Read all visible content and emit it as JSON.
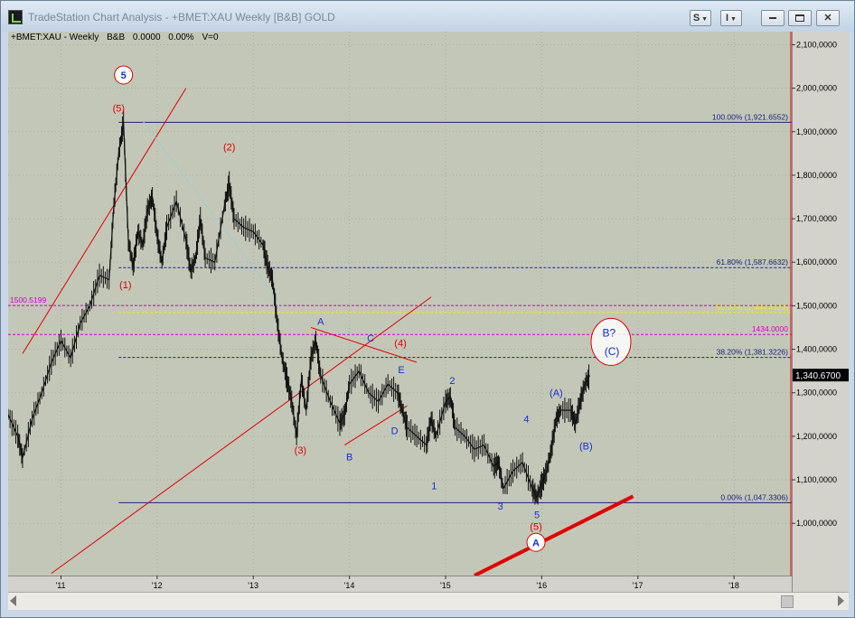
{
  "window": {
    "title": "TradeStation Chart Analysis - +BMET:XAU Weekly [B&B] GOLD",
    "btn_s": "S",
    "btn_i": "I"
  },
  "info": {
    "symbol": "+BMET:XAU - Weekly",
    "tag": "B&B",
    "value": "0.0000",
    "change": "0.00%",
    "volume": "V=0"
  },
  "colors": {
    "plot_bg": "#c3c7b8",
    "price": "#111111",
    "fib": "#1a237e",
    "fib_mid": "#2b3fc4",
    "magenta": "#d100d1",
    "yellow": "#f3f300",
    "red": "#e00000",
    "blue_label": "#1530d0"
  },
  "chart_data": {
    "type": "line",
    "title": "",
    "xlabel": "",
    "ylabel": "",
    "x_ticks": [
      "'11",
      "'12",
      "'13",
      "'14",
      "'15",
      "'16",
      "'17",
      "'18"
    ],
    "y_ticks": [
      "1,000,0000",
      "1,100,0000",
      "1,200,0000",
      "1,300,0000",
      "1,400,0000",
      "1,500,0000",
      "1,600,0000",
      "1,700,0000",
      "1,800,0000",
      "1,900,0000",
      "2,000,0000",
      "2,100,0000"
    ],
    "y_tick_values": [
      1000,
      1100,
      1200,
      1300,
      1400,
      1500,
      1600,
      1700,
      1800,
      1900,
      2000,
      2100
    ],
    "ylim": [
      880,
      2130
    ],
    "xlim": [
      2010.45,
      2018.6
    ],
    "last_price": "1,340.6700",
    "last_value": 1340.67,
    "series": [
      {
        "x": [
          2010.45,
          2010.55,
          2010.6,
          2010.7,
          2010.8,
          2010.9,
          2011.0,
          2011.1,
          2011.2,
          2011.3,
          2011.4,
          2011.5,
          2011.55,
          2011.6,
          2011.65,
          2011.7,
          2011.75,
          2011.8,
          2011.85,
          2011.9,
          2011.95,
          2012.0,
          2012.05,
          2012.1,
          2012.2,
          2012.3,
          2012.35,
          2012.4,
          2012.45,
          2012.5,
          2012.6,
          2012.7,
          2012.75,
          2012.8,
          2012.9,
          2013.0,
          2013.1,
          2013.15,
          2013.2,
          2013.25,
          2013.3,
          2013.35,
          2013.4,
          2013.45,
          2013.5,
          2013.55,
          2013.6,
          2013.65,
          2013.7,
          2013.8,
          2013.9,
          2013.95,
          2014.0,
          2014.1,
          2014.2,
          2014.3,
          2014.4,
          2014.5,
          2014.55,
          2014.6,
          2014.7,
          2014.8,
          2014.85,
          2014.9,
          2015.0,
          2015.05,
          2015.1,
          2015.2,
          2015.3,
          2015.4,
          2015.5,
          2015.55,
          2015.6,
          2015.7,
          2015.8,
          2015.9,
          2015.95,
          2016.0,
          2016.05,
          2016.1,
          2016.15,
          2016.2,
          2016.3,
          2016.35,
          2016.4,
          2016.45,
          2016.5
        ],
        "y": [
          1250,
          1200,
          1150,
          1240,
          1300,
          1370,
          1420,
          1380,
          1460,
          1500,
          1570,
          1560,
          1730,
          1850,
          1920,
          1650,
          1590,
          1670,
          1640,
          1720,
          1750,
          1660,
          1600,
          1680,
          1740,
          1650,
          1580,
          1610,
          1700,
          1610,
          1600,
          1730,
          1780,
          1700,
          1680,
          1670,
          1640,
          1590,
          1560,
          1460,
          1380,
          1330,
          1280,
          1200,
          1330,
          1260,
          1380,
          1420,
          1340,
          1280,
          1230,
          1250,
          1320,
          1350,
          1300,
          1280,
          1320,
          1300,
          1260,
          1220,
          1200,
          1180,
          1240,
          1200,
          1280,
          1290,
          1220,
          1200,
          1170,
          1180,
          1130,
          1140,
          1080,
          1120,
          1140,
          1080,
          1060,
          1090,
          1120,
          1170,
          1240,
          1260,
          1260,
          1230,
          1280,
          1320,
          1340
        ]
      }
    ],
    "levels": [
      {
        "label": "100.00% (1,921.6552)",
        "value": 1921.6552,
        "style": "solid",
        "color": "#1a237e"
      },
      {
        "label": "61.80% (1,587.6632)",
        "value": 1587.6632,
        "style": "dashed",
        "color": "#1a237e"
      },
      {
        "label": "50.00% (1,484.4929)",
        "value": 1484.4929,
        "style": "dashed",
        "color": "#f3f300"
      },
      {
        "label": "38.20% (1,381.3226)",
        "value": 1381.3226,
        "style": "dashed",
        "color": "#1a237e"
      },
      {
        "label": "0.00% (1,047.3306)",
        "value": 1047.3306,
        "style": "solid",
        "color": "#1a237e"
      },
      {
        "label": "1500.5199",
        "value": 1500.5199,
        "style": "dashed",
        "color": "#d100d1"
      },
      {
        "label": "1434.0000",
        "value": 1434.0,
        "style": "dashed",
        "color": "#d100d1"
      }
    ],
    "wave_labels": [
      {
        "text": "5",
        "x": 2011.65,
        "y": 2022,
        "color": "#1530d0",
        "circle": true
      },
      {
        "text": "(5)",
        "x": 2011.6,
        "y": 1946,
        "color": "#e00000"
      },
      {
        "text": "(2)",
        "x": 2012.75,
        "y": 1857,
        "color": "#e00000"
      },
      {
        "text": "(1)",
        "x": 2011.67,
        "y": 1540,
        "color": "#e00000"
      },
      {
        "text": "A",
        "x": 2013.7,
        "y": 1456,
        "color": "#1530d0"
      },
      {
        "text": "C",
        "x": 2014.22,
        "y": 1418,
        "color": "#1530d0"
      },
      {
        "text": "(4)",
        "x": 2014.53,
        "y": 1406,
        "color": "#e00000"
      },
      {
        "text": "E",
        "x": 2014.54,
        "y": 1345,
        "color": "#1530d0"
      },
      {
        "text": "D",
        "x": 2014.47,
        "y": 1205,
        "color": "#1530d0"
      },
      {
        "text": "(3)",
        "x": 2013.49,
        "y": 1160,
        "color": "#e00000"
      },
      {
        "text": "B",
        "x": 2014.0,
        "y": 1145,
        "color": "#1530d0"
      },
      {
        "text": "1",
        "x": 2014.88,
        "y": 1078,
        "color": "#1530d0"
      },
      {
        "text": "2",
        "x": 2015.07,
        "y": 1320,
        "color": "#1530d0"
      },
      {
        "text": "3",
        "x": 2015.57,
        "y": 1032,
        "color": "#1530d0"
      },
      {
        "text": "4",
        "x": 2015.84,
        "y": 1232,
        "color": "#1530d0"
      },
      {
        "text": "5",
        "x": 2015.95,
        "y": 1012,
        "color": "#1530d0"
      },
      {
        "text": "(5)",
        "x": 2015.94,
        "y": 985,
        "color": "#e00000"
      },
      {
        "text": "A",
        "x": 2015.94,
        "y": 948,
        "color": "#1530d0",
        "circle": true
      },
      {
        "text": "(A)",
        "x": 2016.15,
        "y": 1292,
        "color": "#1530d0"
      },
      {
        "text": "(B)",
        "x": 2016.46,
        "y": 1170,
        "color": "#1530d0"
      },
      {
        "text": "B?",
        "x": 2016.7,
        "y": 1429,
        "color": "#1530d0"
      },
      {
        "text": "(C)",
        "x": 2016.73,
        "y": 1387,
        "color": "#1530d0"
      }
    ],
    "trend_lines": [
      {
        "x1": 2010.6,
        "y1": 1390,
        "x2": 2012.3,
        "y2": 2000,
        "color": "#e00000",
        "width": 1
      },
      {
        "x1": 2011.85,
        "y1": 1925,
        "x2": 2013.3,
        "y2": 1500,
        "color": "#9ccfd0",
        "width": 1
      },
      {
        "x1": 2010.9,
        "y1": 885,
        "x2": 2014.85,
        "y2": 1520,
        "color": "#e00000",
        "width": 1
      },
      {
        "x1": 2013.6,
        "y1": 1450,
        "x2": 2014.7,
        "y2": 1370,
        "color": "#e00000",
        "width": 1
      },
      {
        "x1": 2013.95,
        "y1": 1180,
        "x2": 2014.6,
        "y2": 1270,
        "color": "#e00000",
        "width": 1
      },
      {
        "x1": 2015.3,
        "y1": 880,
        "x2": 2016.95,
        "y2": 1062,
        "color": "#e00000",
        "width": 4
      }
    ]
  }
}
